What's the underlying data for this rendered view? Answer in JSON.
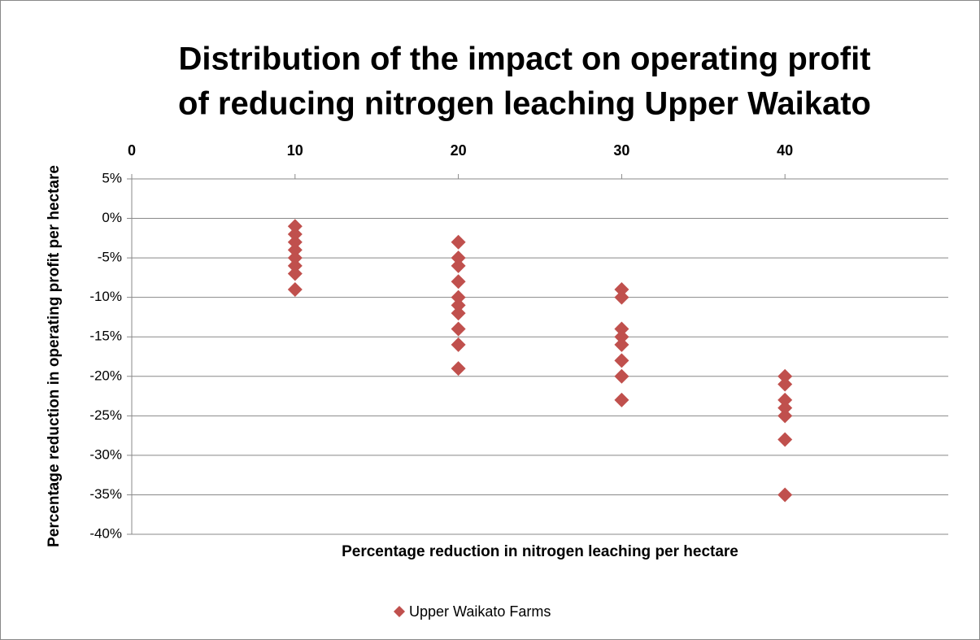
{
  "chart_data": {
    "type": "scatter",
    "title": [
      "Distribution of the impact on operating profit",
      "of reducing nitrogen leaching Upper Waikato"
    ],
    "x_label": "Percentage reduction in nitrogen leaching per hectare",
    "y_label": "Percentage reduction in operating profit per hectare",
    "xlim": [
      0,
      50
    ],
    "xticks": [
      0,
      10,
      20,
      30,
      40
    ],
    "ylim": [
      -40,
      5
    ],
    "yticks": [
      {
        "value": 5,
        "label": "5%"
      },
      {
        "value": 0,
        "label": "0%"
      },
      {
        "value": -5,
        "label": "-5%"
      },
      {
        "value": -10,
        "label": "-10%"
      },
      {
        "value": -15,
        "label": "-15%"
      },
      {
        "value": -20,
        "label": "-20%"
      },
      {
        "value": -25,
        "label": "-25%"
      },
      {
        "value": -30,
        "label": "-30%"
      },
      {
        "value": -35,
        "label": "-35%"
      },
      {
        "value": -40,
        "label": "-40%"
      }
    ],
    "grid": true,
    "legend": "bottom",
    "series": [
      {
        "name": "Upper Waikato Farms",
        "color": "#c0504d",
        "x": [
          10,
          10,
          10,
          10,
          10,
          10,
          10,
          10,
          20,
          20,
          20,
          20,
          20,
          20,
          20,
          20,
          20,
          20,
          30,
          30,
          30,
          30,
          30,
          30,
          30,
          30,
          40,
          40,
          40,
          40,
          40,
          40,
          40
        ],
        "values": [
          -1,
          -2,
          -3,
          -4,
          -5,
          -6,
          -7,
          -9,
          -3,
          -5,
          -6,
          -8,
          -10,
          -11,
          -12,
          -14,
          -16,
          -19,
          -9,
          -10,
          -14,
          -15,
          -16,
          -18,
          -20,
          -23,
          -20,
          -21,
          -23,
          -24,
          -25,
          -28,
          -35
        ]
      }
    ]
  }
}
